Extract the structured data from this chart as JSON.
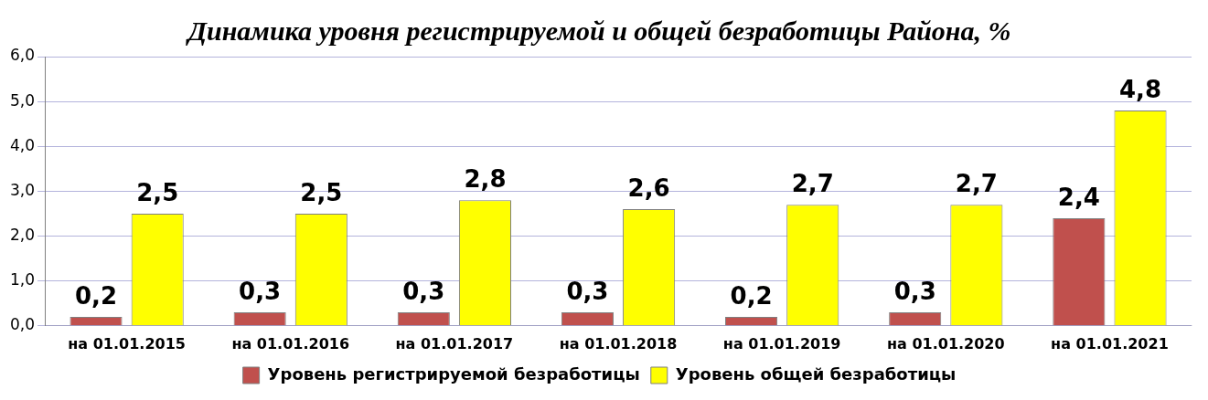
{
  "chart_data": {
    "type": "bar",
    "title": "Динамика уровня регистрируемой и общей безработицы Района, %",
    "categories": [
      "на 01.01.2015",
      "на 01.01.2016",
      "на 01.01.2017",
      "на 01.01.2018",
      "на 01.01.2019",
      "на 01.01.2020",
      "на 01.01.2021"
    ],
    "series": [
      {
        "name": "Уровень регистрируемой безработицы",
        "color": "#c0504d",
        "values": [
          0.2,
          0.3,
          0.3,
          0.3,
          0.2,
          0.3,
          2.4
        ],
        "value_labels": [
          "0,2",
          "0,3",
          "0,3",
          "0,3",
          "0,2",
          "0,3",
          "2,4"
        ]
      },
      {
        "name": "Уровень общей безработицы",
        "color": "#ffff00",
        "values": [
          2.5,
          2.5,
          2.8,
          2.6,
          2.7,
          2.7,
          4.8
        ],
        "value_labels": [
          "2,5",
          "2,5",
          "2,8",
          "2,6",
          "2,7",
          "2,7",
          "4,8"
        ]
      }
    ],
    "ylim": [
      0,
      6
    ],
    "yticks": [
      {
        "value": 0,
        "label": "0,0"
      },
      {
        "value": 1,
        "label": "1,0"
      },
      {
        "value": 2,
        "label": "2,0"
      },
      {
        "value": 3,
        "label": "3,0"
      },
      {
        "value": 4,
        "label": "4,0"
      },
      {
        "value": 5,
        "label": "5,0"
      },
      {
        "value": 6,
        "label": "6,0"
      }
    ],
    "grid": "y",
    "legend": "bottom"
  }
}
